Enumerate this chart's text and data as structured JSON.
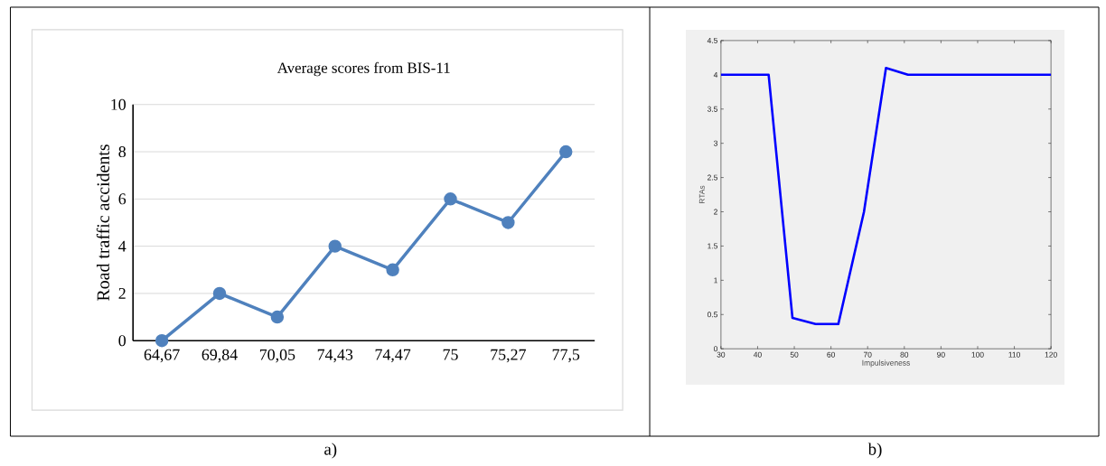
{
  "chart_data": [
    {
      "type": "line",
      "title": "Average scores from  BIS-11",
      "ylabel": "Road traffic accidents",
      "categories": [
        "64,67",
        "69,84",
        "70,05",
        "74,43",
        "74,47",
        "75",
        "75,27",
        "77,5"
      ],
      "values": [
        0,
        2,
        1,
        4,
        3,
        6,
        5,
        8
      ],
      "color": "#4f81bd",
      "marker": "circle",
      "ylim": [
        0,
        10
      ],
      "yticks": [
        0,
        2,
        4,
        6,
        8,
        10
      ],
      "grid": "y",
      "annotations": [
        "a)"
      ]
    },
    {
      "type": "line",
      "xlabel": "Impulsiveness",
      "ylabel": "RTAs",
      "x": [
        30,
        43,
        49.5,
        56,
        62,
        69,
        75,
        81,
        120
      ],
      "values": [
        4,
        4,
        0.45,
        0.36,
        0.36,
        2,
        4.1,
        4,
        4
      ],
      "color": "#0000ff",
      "xlim": [
        30,
        120
      ],
      "xticks": [
        30,
        40,
        50,
        60,
        70,
        80,
        90,
        100,
        110,
        120
      ],
      "ylim": [
        0,
        4.5
      ],
      "yticks": [
        0,
        0.5,
        1,
        1.5,
        2,
        2.5,
        3,
        3.5,
        4,
        4.5
      ],
      "annotations": [
        "b)"
      ]
    }
  ]
}
